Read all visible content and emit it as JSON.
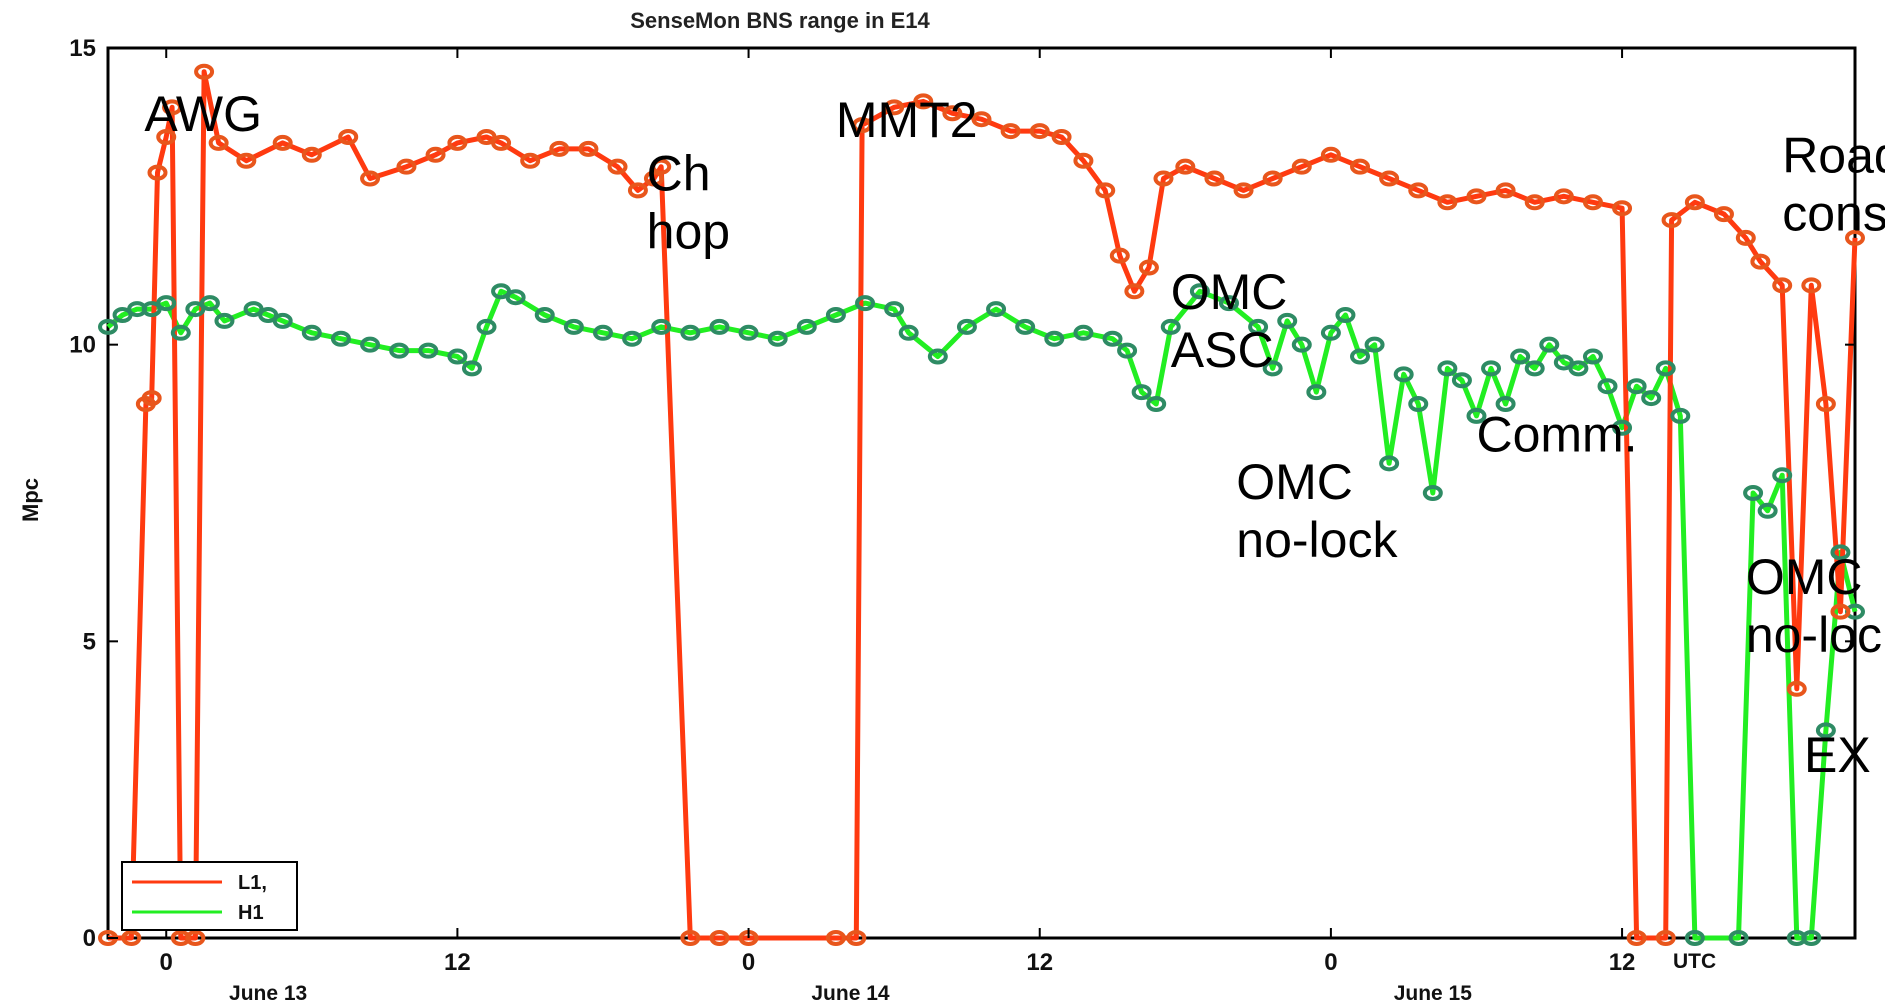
{
  "chart_data": {
    "type": "line",
    "title": "SenseMon BNS range in E14",
    "ylabel": "Mpc",
    "xlabel": "",
    "ylim": [
      0,
      15
    ],
    "yticks": [
      "0",
      "5",
      "10",
      "15"
    ],
    "xlim": [
      -4,
      116
    ],
    "x_unit": "hours since June 13 00:00 UTC",
    "xticks": [
      {
        "x": 0,
        "label": "0"
      },
      {
        "x": 20,
        "label": "12"
      },
      {
        "x": 40,
        "label": "0"
      },
      {
        "x": 60,
        "label": "12"
      },
      {
        "x": 80,
        "label": "0"
      },
      {
        "x": 100,
        "label": "12"
      }
    ],
    "utc_label": "UTC",
    "date_labels": [
      {
        "x": 7,
        "label": "June 13"
      },
      {
        "x": 47,
        "label": "June 14"
      },
      {
        "x": 87,
        "label": "June 15"
      }
    ],
    "grid": false,
    "legend_position": "bottom-left",
    "series": [
      {
        "name": "L1,",
        "color": "#ff3a10",
        "marker_color": "#e8561c",
        "points": [
          [
            -4.0,
            0.0
          ],
          [
            -2.4,
            0.0
          ],
          [
            -1.4,
            9.0
          ],
          [
            -1.0,
            9.1
          ],
          [
            -0.6,
            12.9
          ],
          [
            0.0,
            13.5
          ],
          [
            0.4,
            14.0
          ],
          [
            1.0,
            0.0
          ],
          [
            2.0,
            0.0
          ],
          [
            2.6,
            14.6
          ],
          [
            3.6,
            13.4
          ],
          [
            5.5,
            13.1
          ],
          [
            8.0,
            13.4
          ],
          [
            10.0,
            13.2
          ],
          [
            12.5,
            13.5
          ],
          [
            14.0,
            12.8
          ],
          [
            16.5,
            13.0
          ],
          [
            18.5,
            13.2
          ],
          [
            20.0,
            13.4
          ],
          [
            22.0,
            13.5
          ],
          [
            23.0,
            13.4
          ],
          [
            25.0,
            13.1
          ],
          [
            27.0,
            13.3
          ],
          [
            29.0,
            13.3
          ],
          [
            31.0,
            13.0
          ],
          [
            32.4,
            12.6
          ],
          [
            33.5,
            12.8
          ],
          [
            34.0,
            13.0
          ],
          [
            36.0,
            0.0
          ],
          [
            38.0,
            0.0
          ],
          [
            40.0,
            0.0
          ],
          [
            46.0,
            0.0
          ],
          [
            47.4,
            0.0
          ],
          [
            47.8,
            13.7
          ],
          [
            50.0,
            14.0
          ],
          [
            52.0,
            14.1
          ],
          [
            54.0,
            13.9
          ],
          [
            56.0,
            13.8
          ],
          [
            58.0,
            13.6
          ],
          [
            60.0,
            13.6
          ],
          [
            61.5,
            13.5
          ],
          [
            63.0,
            13.1
          ],
          [
            64.5,
            12.6
          ],
          [
            65.5,
            11.5
          ],
          [
            66.5,
            10.9
          ],
          [
            67.5,
            11.3
          ],
          [
            68.5,
            12.8
          ],
          [
            70.0,
            13.0
          ],
          [
            72.0,
            12.8
          ],
          [
            74.0,
            12.6
          ],
          [
            76.0,
            12.8
          ],
          [
            78.0,
            13.0
          ],
          [
            80.0,
            13.2
          ],
          [
            82.0,
            13.0
          ],
          [
            84.0,
            12.8
          ],
          [
            86.0,
            12.6
          ],
          [
            88.0,
            12.4
          ],
          [
            90.0,
            12.5
          ],
          [
            92.0,
            12.6
          ],
          [
            94.0,
            12.4
          ],
          [
            96.0,
            12.5
          ],
          [
            98.0,
            12.4
          ],
          [
            100.0,
            12.3
          ],
          [
            101.0,
            0.0
          ],
          [
            103.0,
            0.0
          ],
          [
            103.4,
            12.1
          ],
          [
            105.0,
            12.4
          ],
          [
            107.0,
            12.2
          ],
          [
            108.5,
            11.8
          ],
          [
            109.5,
            11.4
          ],
          [
            111.0,
            11.0
          ],
          [
            112.0,
            4.2
          ],
          [
            113.0,
            11.0
          ],
          [
            114.0,
            9.0
          ],
          [
            115.0,
            5.5
          ],
          [
            116.0,
            11.8
          ]
        ]
      },
      {
        "name": "H1",
        "color": "#22ee22",
        "marker_color": "#2e8b64",
        "points": [
          [
            -4.0,
            10.3
          ],
          [
            -3.0,
            10.5
          ],
          [
            -2.0,
            10.6
          ],
          [
            -1.0,
            10.6
          ],
          [
            0.0,
            10.7
          ],
          [
            1.0,
            10.2
          ],
          [
            2.0,
            10.6
          ],
          [
            3.0,
            10.7
          ],
          [
            4.0,
            10.4
          ],
          [
            6.0,
            10.6
          ],
          [
            7.0,
            10.5
          ],
          [
            8.0,
            10.4
          ],
          [
            10.0,
            10.2
          ],
          [
            12.0,
            10.1
          ],
          [
            14.0,
            10.0
          ],
          [
            16.0,
            9.9
          ],
          [
            18.0,
            9.9
          ],
          [
            20.0,
            9.8
          ],
          [
            21.0,
            9.6
          ],
          [
            22.0,
            10.3
          ],
          [
            23.0,
            10.9
          ],
          [
            24.0,
            10.8
          ],
          [
            26.0,
            10.5
          ],
          [
            28.0,
            10.3
          ],
          [
            30.0,
            10.2
          ],
          [
            32.0,
            10.1
          ],
          [
            34.0,
            10.3
          ],
          [
            36.0,
            10.2
          ],
          [
            38.0,
            10.3
          ],
          [
            40.0,
            10.2
          ],
          [
            42.0,
            10.1
          ],
          [
            44.0,
            10.3
          ],
          [
            46.0,
            10.5
          ],
          [
            48.0,
            10.7
          ],
          [
            50.0,
            10.6
          ],
          [
            51.0,
            10.2
          ],
          [
            53.0,
            9.8
          ],
          [
            55.0,
            10.3
          ],
          [
            57.0,
            10.6
          ],
          [
            59.0,
            10.3
          ],
          [
            61.0,
            10.1
          ],
          [
            63.0,
            10.2
          ],
          [
            65.0,
            10.1
          ],
          [
            66.0,
            9.9
          ],
          [
            67.0,
            9.2
          ],
          [
            68.0,
            9.0
          ],
          [
            69.0,
            10.3
          ],
          [
            71.0,
            10.9
          ],
          [
            73.0,
            10.7
          ],
          [
            75.0,
            10.3
          ],
          [
            76.0,
            9.6
          ],
          [
            77.0,
            10.4
          ],
          [
            78.0,
            10.0
          ],
          [
            79.0,
            9.2
          ],
          [
            80.0,
            10.2
          ],
          [
            81.0,
            10.5
          ],
          [
            82.0,
            9.8
          ],
          [
            83.0,
            10.0
          ],
          [
            84.0,
            8.0
          ],
          [
            85.0,
            9.5
          ],
          [
            86.0,
            9.0
          ],
          [
            87.0,
            7.5
          ],
          [
            88.0,
            9.6
          ],
          [
            89.0,
            9.4
          ],
          [
            90.0,
            8.8
          ],
          [
            91.0,
            9.6
          ],
          [
            92.0,
            9.0
          ],
          [
            93.0,
            9.8
          ],
          [
            94.0,
            9.6
          ],
          [
            95.0,
            10.0
          ],
          [
            96.0,
            9.7
          ],
          [
            97.0,
            9.6
          ],
          [
            98.0,
            9.8
          ],
          [
            99.0,
            9.3
          ],
          [
            100.0,
            8.6
          ],
          [
            101.0,
            9.3
          ],
          [
            102.0,
            9.1
          ],
          [
            103.0,
            9.6
          ],
          [
            104.0,
            8.8
          ],
          [
            105.0,
            0.0
          ],
          [
            108.0,
            0.0
          ],
          [
            109.0,
            7.5
          ],
          [
            110.0,
            7.2
          ],
          [
            111.0,
            7.8
          ],
          [
            112.0,
            0.0
          ],
          [
            113.0,
            0.0
          ],
          [
            114.0,
            3.5
          ],
          [
            115.0,
            6.5
          ],
          [
            116.0,
            5.5
          ]
        ]
      }
    ],
    "annotations": [
      {
        "x": -1.5,
        "y": 13.6,
        "lines": [
          "AWG"
        ]
      },
      {
        "x": 33.0,
        "y": 12.6,
        "lines": [
          "Ch",
          "hop"
        ]
      },
      {
        "x": 46.0,
        "y": 13.5,
        "lines": [
          "MMT2"
        ]
      },
      {
        "x": 69.0,
        "y": 10.6,
        "lines": [
          "OMC",
          "ASC"
        ]
      },
      {
        "x": 73.5,
        "y": 7.4,
        "lines": [
          "OMC",
          "no-lock"
        ]
      },
      {
        "x": 90.0,
        "y": 8.2,
        "lines": [
          "Comm."
        ]
      },
      {
        "x": 108.5,
        "y": 5.8,
        "lines": [
          "OMC",
          "no-lock"
        ]
      },
      {
        "x": 111.0,
        "y": 12.9,
        "lines": [
          "Road",
          "constr"
        ]
      },
      {
        "x": 112.5,
        "y": 2.8,
        "lines": [
          "EX logging"
        ]
      }
    ]
  }
}
